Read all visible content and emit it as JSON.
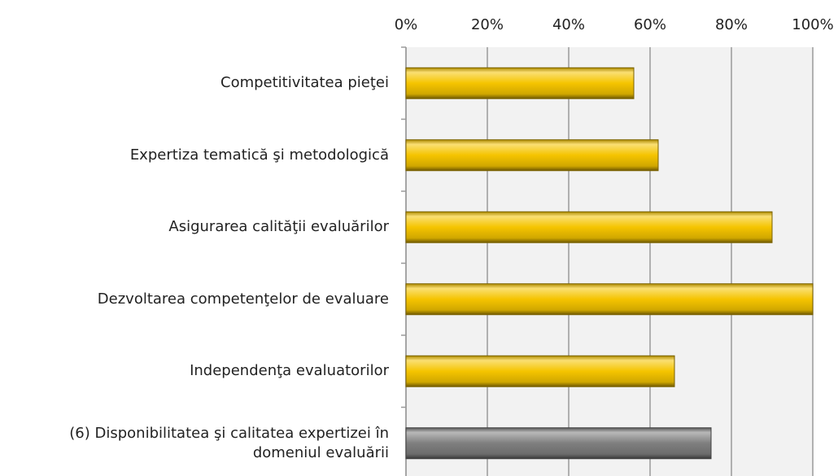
{
  "chart_data": {
    "type": "barh",
    "categories": [
      "Competitivitatea pieţei",
      "Expertiza tematică şi metodologică",
      "Asigurarea calităţii evaluărilor",
      "Dezvoltarea competenţelor de evaluare",
      "Independenţa evaluatorilor",
      "(6) Disponibilitatea şi calitatea expertizei în domeniul evaluării"
    ],
    "values": [
      56,
      62,
      90,
      100,
      66,
      75
    ],
    "colors": [
      "#f5c400",
      "#f5c400",
      "#f5c400",
      "#f5c400",
      "#f5c400",
      "#7f7f7f"
    ],
    "xlim": [
      0,
      100
    ],
    "xticks": [
      {
        "value": 0,
        "label": "0%"
      },
      {
        "value": 20,
        "label": "20%"
      },
      {
        "value": 40,
        "label": "40%"
      },
      {
        "value": 60,
        "label": "60%"
      },
      {
        "value": 80,
        "label": "80%"
      },
      {
        "value": 100,
        "label": "100%"
      }
    ],
    "grid": true
  }
}
